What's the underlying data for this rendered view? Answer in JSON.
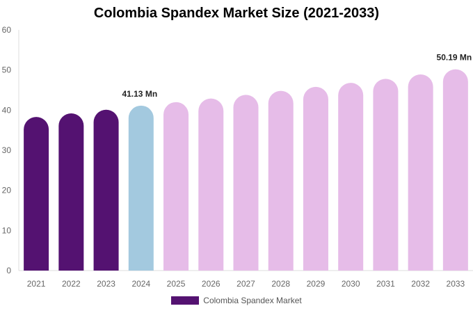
{
  "chart_data": {
    "type": "bar",
    "title": "Colombia Spandex Market Size (2021-2033)",
    "categories": [
      "2021",
      "2022",
      "2023",
      "2024",
      "2025",
      "2026",
      "2027",
      "2028",
      "2029",
      "2030",
      "2031",
      "2032",
      "2033"
    ],
    "series": [
      {
        "name": "Colombia Spandex Market",
        "values": [
          38.3,
          39.2,
          40.1,
          41.13,
          42.0,
          42.9,
          43.8,
          44.8,
          45.8,
          46.8,
          47.8,
          48.9,
          50.19
        ]
      }
    ],
    "data_labels": {
      "3": "41.13 Mn",
      "12": "50.19 Mn"
    },
    "ylim": [
      0,
      60
    ],
    "yticks": [
      0,
      10,
      20,
      30,
      40,
      50,
      60
    ],
    "grid": false,
    "legend": "bottom",
    "colors": {
      "historical": "#541271",
      "current": "#a3c9df",
      "forecast": "#e6bce8"
    },
    "color_index": [
      "historical",
      "historical",
      "historical",
      "current",
      "forecast",
      "forecast",
      "forecast",
      "forecast",
      "forecast",
      "forecast",
      "forecast",
      "forecast",
      "forecast"
    ]
  }
}
